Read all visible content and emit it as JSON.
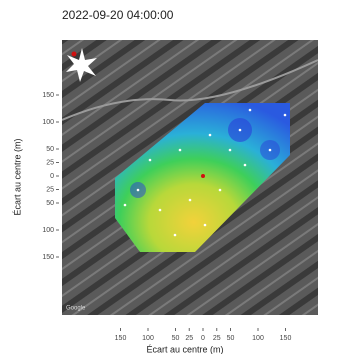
{
  "header": {
    "title": "2022-09-20 04:00:00"
  },
  "axes": {
    "xlabel": "Écart au centre (m)",
    "ylabel": "Écart au centre (m)",
    "xticks": [
      {
        "value": -150,
        "label": "150"
      },
      {
        "value": -100,
        "label": "100"
      },
      {
        "value": -50,
        "label": "50"
      },
      {
        "value": -25,
        "label": "25"
      },
      0,
      25,
      50,
      100,
      150
    ],
    "yticks": [
      150,
      100,
      50,
      25,
      0,
      {
        "value": -25,
        "label": "25"
      },
      {
        "value": -50,
        "label": "50"
      },
      {
        "value": -100,
        "label": "100"
      },
      {
        "value": -150,
        "label": "150"
      }
    ]
  },
  "map": {
    "watermark": "Google"
  }
}
